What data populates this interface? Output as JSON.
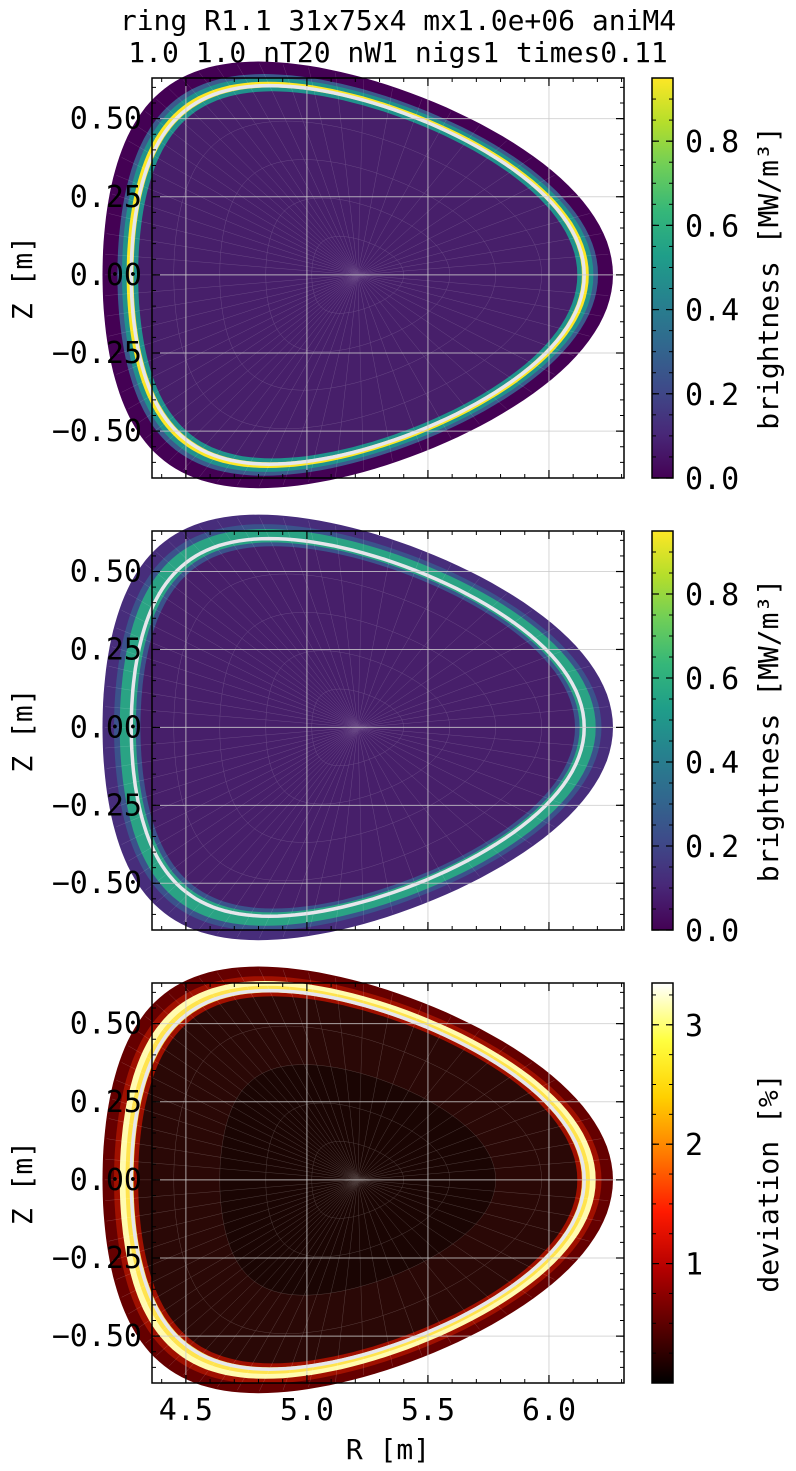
{
  "title_lines": [
    "ring R1.1 31x75x4 mx1.0e+06 aniM4",
    "1.0 1.0 nT20 nW1 nigs1 times0.11"
  ],
  "colors": {
    "viridis_dark": "#440154",
    "viridis_inner": "#471f6a",
    "viridis_teal": "#2aa384",
    "viridis_yellow": "#fde725",
    "hot_dark": "#1a0503",
    "hot_red": "#8b0000",
    "hot_bright": "#fffbb0",
    "contour": "#e6e6ec",
    "grid": "#cccccc"
  },
  "chart_data": [
    {
      "type": "heatmap",
      "name": "panel-top",
      "xlabel": "",
      "ylabel": "Z [m]",
      "xlim": [
        4.36,
        6.31
      ],
      "ylim": [
        -0.65,
        0.63
      ],
      "xticks": [
        4.5,
        5.0,
        5.5,
        6.0
      ],
      "xtick_labels": [
        "",
        "",
        "",
        ""
      ],
      "yticks": [
        0.5,
        0.25,
        0.0,
        -0.25,
        -0.5
      ],
      "ytick_labels": [
        "0.50",
        "0.25",
        "0.00",
        "−0.25",
        "−0.50"
      ],
      "grid": true,
      "colormap": "viridis",
      "colorbar": {
        "label": "brightness [MW/m³]",
        "range": [
          0.0,
          0.95
        ],
        "ticks": [
          0.0,
          0.2,
          0.4,
          0.6,
          0.8
        ],
        "tick_labels": [
          "0.0",
          "0.2",
          "0.4",
          "0.6",
          "0.8"
        ]
      },
      "emission_ring": "thin bright ring peaking about 0.95 just outside the white contour"
    },
    {
      "type": "heatmap",
      "name": "panel-middle",
      "xlabel": "",
      "ylabel": "Z [m]",
      "xlim": [
        4.36,
        6.31
      ],
      "ylim": [
        -0.65,
        0.63
      ],
      "xticks": [
        4.5,
        5.0,
        5.5,
        6.0
      ],
      "xtick_labels": [
        "",
        "",
        "",
        ""
      ],
      "yticks": [
        0.5,
        0.25,
        0.0,
        -0.25,
        -0.5
      ],
      "ytick_labels": [
        "0.50",
        "0.25",
        "0.00",
        "−0.25",
        "−0.50"
      ],
      "grid": true,
      "colormap": "viridis",
      "colorbar": {
        "label": "brightness [MW/m³]",
        "range": [
          0.0,
          0.95
        ],
        "ticks": [
          0.0,
          0.2,
          0.4,
          0.6,
          0.8
        ],
        "tick_labels": [
          "0.0",
          "0.2",
          "0.4",
          "0.6",
          "0.8"
        ]
      },
      "emission_ring": "broad ring about 0.65 just outside the white contour"
    },
    {
      "type": "heatmap",
      "name": "panel-bottom",
      "xlabel": "R [m]",
      "ylabel": "Z [m]",
      "xlim": [
        4.36,
        6.31
      ],
      "ylim": [
        -0.65,
        0.63
      ],
      "xticks": [
        4.5,
        5.0,
        5.5,
        6.0
      ],
      "xtick_labels": [
        "4.5",
        "5.0",
        "5.5",
        "6.0"
      ],
      "yticks": [
        0.5,
        0.25,
        0.0,
        -0.25,
        -0.5
      ],
      "ytick_labels": [
        "0.50",
        "0.25",
        "0.00",
        "−0.25",
        "−0.50"
      ],
      "grid": true,
      "colormap": "hot",
      "colorbar": {
        "label": "deviation [%]",
        "range": [
          0.0,
          3.35
        ],
        "ticks": [
          1,
          2,
          3
        ],
        "tick_labels": [
          "1",
          "2",
          "3"
        ]
      },
      "emission_ring": "peak deviation about 3.3 in a thin ring just outside the white contour"
    }
  ]
}
